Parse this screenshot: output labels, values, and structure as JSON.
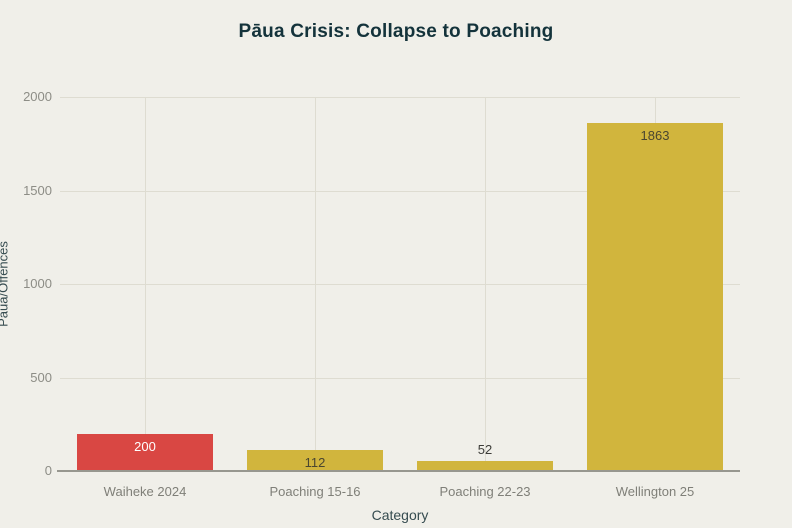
{
  "chart_data": {
    "type": "bar",
    "title": "Pāua Crisis: Collapse to Poaching",
    "xlabel": "Category",
    "ylabel": "Pāua/Offences",
    "categories": [
      "Waiheke 2024",
      "Poaching 15-16",
      "Poaching 22-23",
      "Wellington 25"
    ],
    "values": [
      200,
      112,
      52,
      1863
    ],
    "value_labels": [
      "200",
      "112",
      "52",
      "1863"
    ],
    "bar_colors": [
      "#d94743",
      "#d1b53d",
      "#d1b53d",
      "#d1b53d"
    ],
    "value_label_colors": [
      "#ffffff",
      "#4a4630",
      "#3c3c38",
      "#4a4630"
    ],
    "ylim": [
      0,
      2000
    ],
    "yticks": [
      0,
      500,
      1000,
      1500,
      2000
    ],
    "grid": true,
    "legend": "none"
  },
  "colors": {
    "background": "#f0efe9",
    "title": "#14333b",
    "axis_title": "#364c50",
    "tick_label": "#8d8d86",
    "category_label": "#7f7f78",
    "gridline": "#dedcd1",
    "axis_line": "#97978f"
  }
}
